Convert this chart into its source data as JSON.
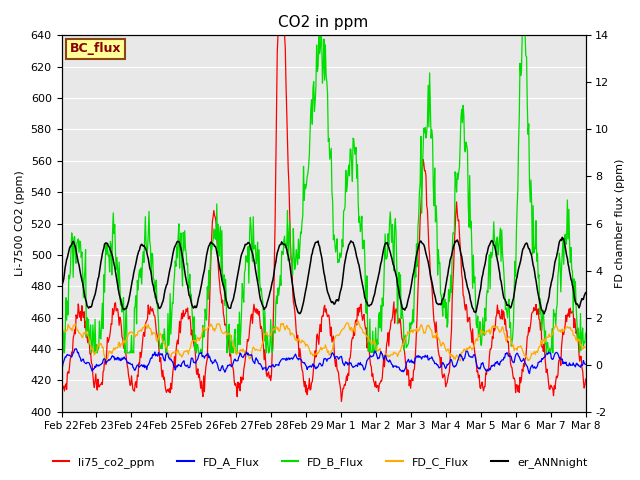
{
  "title": "CO2 in ppm",
  "ylabel_left": "Li-7500 CO2 (ppm)",
  "ylabel_right": "FD chamber flux (ppm)",
  "ylim_left": [
    400,
    640
  ],
  "ylim_right": [
    -2,
    14
  ],
  "bg_color": "#e8e8e8",
  "fig_bg": "#ffffff",
  "bc_flux_label": "BC_flux",
  "series_colors": {
    "li75_co2_ppm": "#ff0000",
    "FD_A_Flux": "#0000ff",
    "FD_B_Flux": "#00dd00",
    "FD_C_Flux": "#ffaa00",
    "er_ANNnight": "#000000"
  },
  "xtick_labels": [
    "Feb 22",
    "Feb 23",
    "Feb 24",
    "Feb 25",
    "Feb 26",
    "Feb 27",
    "Feb 28",
    "Feb 29",
    "Mar 1",
    "Mar 2",
    "Mar 3",
    "Mar 4",
    "Mar 5",
    "Mar 6",
    "Mar 7",
    "Mar 8"
  ],
  "n_days": 15,
  "points_per_day": 48,
  "yticks_left": [
    400,
    420,
    440,
    460,
    480,
    500,
    520,
    540,
    560,
    580,
    600,
    620,
    640
  ],
  "yticks_right": [
    -2,
    0,
    2,
    4,
    6,
    8,
    10,
    12,
    14
  ]
}
